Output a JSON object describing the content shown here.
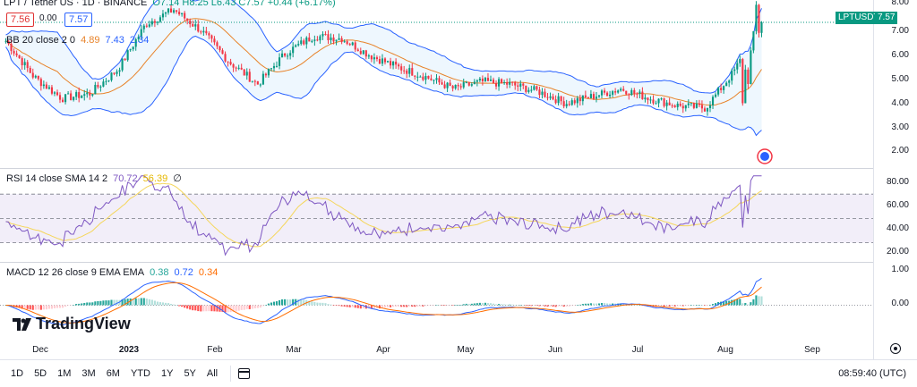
{
  "header": {
    "symbol_title": "LPT / Tether US · 1D · BINANCE",
    "ohlc": "O7.14 H8.25 L6.43 C7.57 +0.44 (+6.17%)",
    "sell_price": "7.56",
    "buy_price": "7.57",
    "spread": "0.00"
  },
  "indicators": {
    "bb": {
      "label": "BB 20 close 2 0",
      "basis": "4.89",
      "upper": "7.43",
      "lower": "2.34"
    },
    "rsi": {
      "label": "RSI 14 close SMA 14 2",
      "value": "70.72",
      "sma": "56.39",
      "extra": "∅"
    },
    "macd": {
      "label": "MACD 12 26 close 9 EMA EMA",
      "hist": "0.38",
      "macd": "0.72",
      "signal": "0.34"
    }
  },
  "price_axis": {
    "ticks": [
      "8.00",
      "7.00",
      "6.00",
      "5.00",
      "4.00",
      "3.00",
      "2.00"
    ],
    "last_tag_symbol": "LPTUSDT",
    "last_tag_price": "7.57"
  },
  "rsi_axis": {
    "ticks": [
      "80.00",
      "60.00",
      "40.00",
      "20.00"
    ]
  },
  "macd_axis": {
    "ticks": [
      "1.00",
      "0.00"
    ]
  },
  "time_axis": {
    "labels": [
      "Dec",
      "2023",
      "Feb",
      "Mar",
      "Apr",
      "May",
      "Jun",
      "Jul",
      "Aug",
      "Sep"
    ]
  },
  "logo_text": "TradingView",
  "bottom_bar": {
    "ranges": [
      "1D",
      "5D",
      "1M",
      "3M",
      "6M",
      "YTD",
      "1Y",
      "5Y",
      "All"
    ],
    "clock": "08:59:40 (UTC)"
  },
  "colors": {
    "up": "#089981",
    "down": "#f23645",
    "bb_basis": "#e8832a",
    "bb_band": "#2962ff",
    "rsi": "#7e57c2",
    "rsi_sma": "#f5d65a",
    "macd": "#2962ff",
    "signal": "#ff6d00"
  },
  "chart_data": {
    "type": "candlestick",
    "x": [
      "Dec",
      "2023",
      "Feb",
      "Mar",
      "Apr",
      "May",
      "Jun",
      "Jul",
      "Aug",
      "Sep"
    ],
    "close_approx": [
      6.8,
      5.3,
      4.4,
      4.6,
      5.6,
      7.5,
      8.1,
      7.2,
      5.9,
      5.0,
      6.3,
      7.0,
      6.9,
      6.2,
      5.7,
      5.3,
      4.8,
      5.1,
      5.0,
      4.7,
      4.2,
      4.5,
      4.8,
      4.4,
      4.1,
      4.0,
      5.5,
      7.57
    ],
    "ylim": [
      1.5,
      8.5
    ],
    "rsi_ylim": [
      15,
      90
    ],
    "macd_ylim": [
      -1.1,
      1.4
    ]
  }
}
